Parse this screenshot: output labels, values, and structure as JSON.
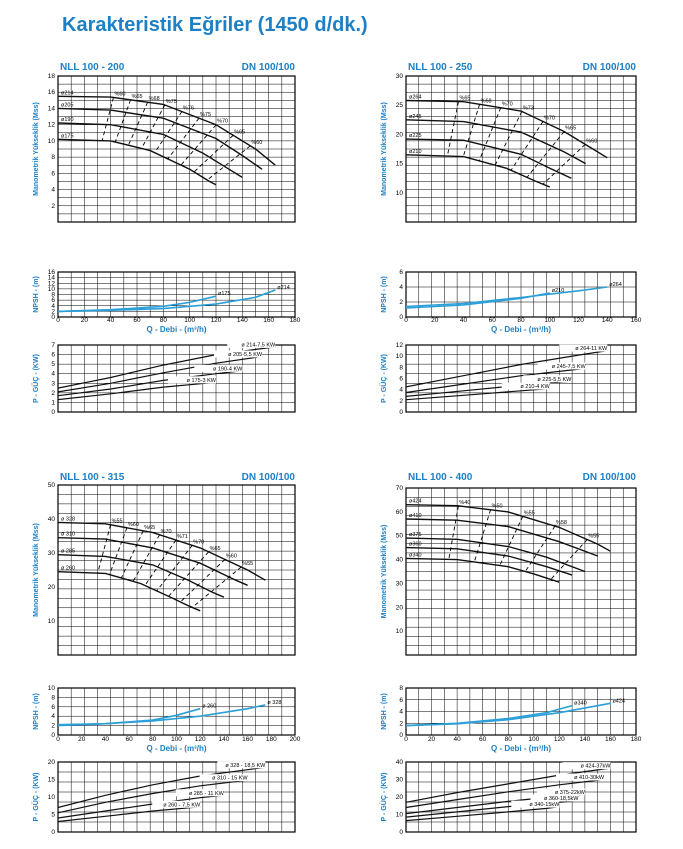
{
  "page_title": "Karakteristik Eğriler (1450 d/dk.)",
  "colors": {
    "title": "#1d7fc4",
    "axis_label": "#1d7fc4",
    "npsh": "#2a9fd8",
    "curve": "#111111"
  },
  "chart_data": [
    {
      "id": "nll100-200",
      "type": "line",
      "model": "NLL 100 - 200",
      "dn": "DN 100/100",
      "x_ticks": [
        "0",
        "20",
        "40",
        "60",
        "80",
        "100",
        "120",
        "140",
        "160",
        "180"
      ],
      "xlabel": "Q - Debi - (m³/h)",
      "head": {
        "ylabel": "Manometrik Yükseklik (Mss)",
        "ylim": [
          0,
          18
        ],
        "y_ticks": [
          "2",
          "4",
          "6",
          "8",
          "10",
          "12",
          "14",
          "16",
          "18"
        ],
        "series": [
          {
            "name": "ø214",
            "x": [
              0,
              40,
              80,
              120,
              150,
              165
            ],
            "y": [
              15.5,
              15.4,
              14.5,
              12.0,
              9.0,
              7.0
            ]
          },
          {
            "name": "ø205",
            "x": [
              0,
              40,
              80,
              120,
              140,
              155
            ],
            "y": [
              14.0,
              13.8,
              12.8,
              10.3,
              8.2,
              6.5
            ]
          },
          {
            "name": "ø190",
            "x": [
              0,
              40,
              80,
              110,
              130,
              140
            ],
            "y": [
              12.2,
              12.0,
              10.8,
              8.5,
              6.5,
              5.5
            ]
          },
          {
            "name": "ø175",
            "x": [
              0,
              40,
              70,
              100,
              115,
              120
            ],
            "y": [
              10.2,
              10.0,
              8.8,
              6.5,
              5.0,
              4.6
            ]
          }
        ],
        "efficiency_labels": [
          "%60",
          "%65",
          "%68",
          "%75",
          "%76",
          "%75",
          "%70",
          "%65",
          "%60"
        ]
      },
      "npsh": {
        "ylabel": "NPSH - (m)",
        "ylim": [
          0,
          16
        ],
        "y_ticks": [
          "0",
          "2",
          "4",
          "6",
          "8",
          "10",
          "12",
          "14",
          "16"
        ],
        "series": [
          {
            "name": "ø175",
            "x": [
              0,
              40,
              80,
              100,
              120
            ],
            "y": [
              2.0,
              2.6,
              3.8,
              5.2,
              7.4
            ]
          },
          {
            "name": "ø214",
            "x": [
              0,
              40,
              80,
              120,
              150,
              165
            ],
            "y": [
              2.0,
              2.4,
              3.0,
              4.6,
              7.0,
              9.6
            ]
          }
        ]
      },
      "power": {
        "ylabel": "P - GÜÇ - (KW)",
        "ylim": [
          0,
          7
        ],
        "y_ticks": [
          "0",
          "1",
          "2",
          "3",
          "4",
          "5",
          "6",
          "7"
        ],
        "series": [
          {
            "name": "ø 214-7,5 KW",
            "x": [
              0,
              40,
              80,
              120,
              165
            ],
            "y": [
              2.5,
              3.6,
              4.9,
              6.0,
              6.8
            ]
          },
          {
            "name": "ø 205-5,5 KW",
            "x": [
              0,
              40,
              80,
              120,
              155
            ],
            "y": [
              2.1,
              3.0,
              4.1,
              5.1,
              5.8
            ]
          },
          {
            "name": "ø 190-4 KW",
            "x": [
              0,
              40,
              80,
              120,
              140
            ],
            "y": [
              1.7,
              2.4,
              3.3,
              4.0,
              4.3
            ]
          },
          {
            "name": "ø 175-3 KW",
            "x": [
              0,
              40,
              80,
              120
            ],
            "y": [
              1.3,
              1.9,
              2.6,
              3.1
            ]
          }
        ]
      }
    },
    {
      "id": "nll100-250",
      "type": "line",
      "model": "NLL 100 - 250",
      "dn": "DN 100/100",
      "x_ticks": [
        "0",
        "20",
        "40",
        "60",
        "80",
        "100",
        "120",
        "140",
        "160"
      ],
      "xlabel": "Q - Debi - (m³/h)",
      "head": {
        "ylabel": "Manometrik Yükseklik (Mss)",
        "ylim": [
          5,
          30
        ],
        "y_ticks": [
          "10",
          "15",
          "20",
          "25",
          "30"
        ],
        "series": [
          {
            "name": "ø264",
            "x": [
              0,
              40,
              80,
              110,
              130,
              140
            ],
            "y": [
              25.8,
              25.6,
              24.0,
              20.5,
              17.5,
              16.0
            ]
          },
          {
            "name": "ø245",
            "x": [
              0,
              40,
              80,
              110,
              125
            ],
            "y": [
              22.5,
              22.2,
              20.4,
              17.0,
              15.0
            ]
          },
          {
            "name": "ø225",
            "x": [
              0,
              40,
              80,
              100,
              115
            ],
            "y": [
              19.2,
              19.0,
              16.6,
              14.2,
              12.5
            ]
          },
          {
            "name": "ø210",
            "x": [
              0,
              40,
              70,
              90,
              100
            ],
            "y": [
              16.5,
              16.2,
              14.2,
              12.0,
              11.0
            ]
          }
        ],
        "efficiency_labels": [
          "%65",
          "%68",
          "%70",
          "%73",
          "%70",
          "%65",
          "%60"
        ]
      },
      "npsh": {
        "ylabel": "NPSH - (m)",
        "ylim": [
          0,
          6
        ],
        "y_ticks": [
          "0",
          "2",
          "4",
          "6"
        ],
        "series": [
          {
            "name": "ø210",
            "x": [
              0,
              40,
              80,
              100
            ],
            "y": [
              1.2,
              1.6,
              2.5,
              3.2
            ]
          },
          {
            "name": "ø264",
            "x": [
              0,
              40,
              80,
              120,
              140
            ],
            "y": [
              1.4,
              1.8,
              2.6,
              3.5,
              4.0
            ]
          }
        ]
      },
      "power": {
        "ylabel": "P - GÜÇ - (KW)",
        "ylim": [
          0,
          12
        ],
        "y_ticks": [
          "0",
          "2",
          "4",
          "6",
          "8",
          "10",
          "12"
        ],
        "series": [
          {
            "name": "ø 264-11 KW",
            "x": [
              0,
              40,
              80,
              120,
              140
            ],
            "y": [
              4.5,
              6.5,
              8.5,
              10.2,
              11.0
            ]
          },
          {
            "name": "ø 245-7,5 KW",
            "x": [
              0,
              40,
              80,
              125
            ],
            "y": [
              3.5,
              5.0,
              6.5,
              7.8
            ]
          },
          {
            "name": "ø 225-5,5 KW",
            "x": [
              0,
              40,
              80,
              115
            ],
            "y": [
              2.8,
              3.8,
              4.8,
              5.5
            ]
          },
          {
            "name": "ø 210-4 KW",
            "x": [
              0,
              40,
              80,
              100
            ],
            "y": [
              2.2,
              3.0,
              3.8,
              4.2
            ]
          }
        ]
      }
    },
    {
      "id": "nll100-315",
      "type": "line",
      "model": "NLL 100 - 315",
      "dn": "DN 100/100",
      "x_ticks": [
        "0",
        "20",
        "40",
        "60",
        "80",
        "100",
        "120",
        "140",
        "160",
        "180",
        "200"
      ],
      "xlabel": "Q - Debi - (m³/h)",
      "head": {
        "ylabel": "Manometrik Yükseklik (Mss)",
        "ylim": [
          0,
          50
        ],
        "y_ticks": [
          "10",
          "20",
          "30",
          "40",
          "50"
        ],
        "series": [
          {
            "name": "ø 328",
            "x": [
              0,
              40,
              80,
              120,
              160,
              175
            ],
            "y": [
              39.0,
              38.6,
              36.0,
              31.5,
              25.0,
              22.0
            ]
          },
          {
            "name": "ø 310",
            "x": [
              0,
              40,
              80,
              120,
              150,
              160
            ],
            "y": [
              34.5,
              34.1,
              31.5,
              27.0,
              22.0,
              20.5
            ]
          },
          {
            "name": "ø 285",
            "x": [
              0,
              40,
              80,
              110,
              130,
              140
            ],
            "y": [
              29.5,
              29.0,
              26.5,
              22.0,
              18.5,
              17.0
            ]
          },
          {
            "name": "ø 260",
            "x": [
              0,
              40,
              70,
              95,
              110,
              120
            ],
            "y": [
              24.5,
              24.0,
              21.0,
              17.0,
              14.5,
              13.0
            ]
          }
        ],
        "efficiency_labels": [
          "%55",
          "%60",
          "%65",
          "%70",
          "%71",
          "%70",
          "%65",
          "%60",
          "%55"
        ]
      },
      "npsh": {
        "ylabel": "NPSH - (m)",
        "ylim": [
          0,
          10
        ],
        "y_ticks": [
          "0",
          "2",
          "4",
          "6",
          "8",
          "10"
        ],
        "series": [
          {
            "name": "ø 260",
            "x": [
              0,
              40,
              80,
              100,
              120
            ],
            "y": [
              2.0,
              2.4,
              3.2,
              4.2,
              5.6
            ]
          },
          {
            "name": "ø 328",
            "x": [
              0,
              40,
              80,
              120,
              160,
              175
            ],
            "y": [
              2.2,
              2.4,
              3.0,
              4.0,
              5.6,
              6.4
            ]
          }
        ]
      },
      "power": {
        "ylabel": "P - GÜÇ - (KW)",
        "ylim": [
          0,
          20
        ],
        "y_ticks": [
          "0",
          "5",
          "10",
          "15",
          "20"
        ],
        "series": [
          {
            "name": "ø 328 - 18,5 KW",
            "x": [
              0,
              40,
              80,
              120,
              175
            ],
            "y": [
              7.0,
              10.5,
              13.5,
              16.0,
              18.5
            ]
          },
          {
            "name": "ø 310 - 15 KW",
            "x": [
              0,
              40,
              80,
              120,
              160
            ],
            "y": [
              5.5,
              8.5,
              11.0,
              13.2,
              14.8
            ]
          },
          {
            "name": "ø 285 - 11 KW",
            "x": [
              0,
              40,
              80,
              120,
              140
            ],
            "y": [
              4.0,
              6.0,
              8.0,
              9.8,
              10.5
            ]
          },
          {
            "name": "ø 260 - 7,5 KW",
            "x": [
              0,
              40,
              80,
              120
            ],
            "y": [
              3.0,
              4.5,
              6.0,
              7.2
            ]
          }
        ]
      }
    },
    {
      "id": "nll100-400",
      "type": "line",
      "model": "NLL 100 - 400",
      "dn": "DN 100/100",
      "x_ticks": [
        "0",
        "20",
        "40",
        "60",
        "80",
        "100",
        "120",
        "140",
        "160",
        "180"
      ],
      "xlabel": "Q - Debi - (m³/h)",
      "head": {
        "ylabel": "Manometrik Yükseklik (Mss)",
        "ylim": [
          0,
          70
        ],
        "y_ticks": [
          "10",
          "20",
          "30",
          "40",
          "50",
          "60",
          "70"
        ],
        "series": [
          {
            "name": "ø424",
            "x": [
              0,
              40,
              80,
              120,
              150,
              160
            ],
            "y": [
              63.0,
              62.6,
              60.0,
              53.5,
              46.5,
              43.5
            ]
          },
          {
            "name": "ø410",
            "x": [
              0,
              40,
              80,
              120,
              150
            ],
            "y": [
              57.0,
              56.5,
              53.8,
              47.5,
              41.5
            ]
          },
          {
            "name": "ø375",
            "x": [
              0,
              40,
              80,
              110,
              140
            ],
            "y": [
              49.0,
              48.5,
              45.5,
              41.0,
              35.0
            ]
          },
          {
            "name": "ø360",
            "x": [
              0,
              40,
              80,
              110,
              130
            ],
            "y": [
              45.0,
              44.5,
              41.5,
              37.0,
              33.5
            ]
          },
          {
            "name": "ø340",
            "x": [
              0,
              40,
              80,
              100,
              120
            ],
            "y": [
              40.5,
              40.0,
              37.0,
              34.0,
              30.5
            ]
          }
        ],
        "efficiency_labels": [
          "%40",
          "%50",
          "%55",
          "%58",
          "%55"
        ]
      },
      "npsh": {
        "ylabel": "NPSH - (m)",
        "ylim": [
          0,
          8
        ],
        "y_ticks": [
          "0",
          "2",
          "4",
          "6",
          "8"
        ],
        "series": [
          {
            "name": "ø340",
            "x": [
              0,
              40,
              80,
              110,
              130
            ],
            "y": [
              1.6,
              2.0,
              2.8,
              3.8,
              5.0
            ]
          },
          {
            "name": "ø424",
            "x": [
              0,
              40,
              80,
              120,
              160
            ],
            "y": [
              1.6,
              1.9,
              2.6,
              3.8,
              5.4
            ]
          }
        ]
      },
      "power": {
        "ylabel": "P - GÜÇ - (KW)",
        "ylim": [
          0,
          40
        ],
        "y_ticks": [
          "0",
          "10",
          "20",
          "30",
          "40"
        ],
        "series": [
          {
            "name": "ø 424-37kW",
            "x": [
              0,
              40,
              80,
              120,
              160
            ],
            "y": [
              17.0,
              22.5,
              27.5,
              32.5,
              36.5
            ]
          },
          {
            "name": "ø 410-30kW",
            "x": [
              0,
              40,
              80,
              120,
              155
            ],
            "y": [
              14.0,
              18.5,
              23.0,
              27.0,
              30.0
            ]
          },
          {
            "name": "ø 375-22kW",
            "x": [
              0,
              40,
              80,
              120,
              140
            ],
            "y": [
              10.5,
              14.0,
              17.5,
              20.5,
              21.5
            ]
          },
          {
            "name": "ø 360-18,5kW",
            "x": [
              0,
              40,
              80,
              120,
              135
            ],
            "y": [
              8.5,
              11.5,
              14.5,
              17.0,
              18.0
            ]
          },
          {
            "name": "ø 340-15kW",
            "x": [
              0,
              40,
              80,
              110,
              120
            ],
            "y": [
              6.5,
              9.0,
              11.5,
              13.5,
              14.5
            ]
          }
        ]
      }
    }
  ]
}
